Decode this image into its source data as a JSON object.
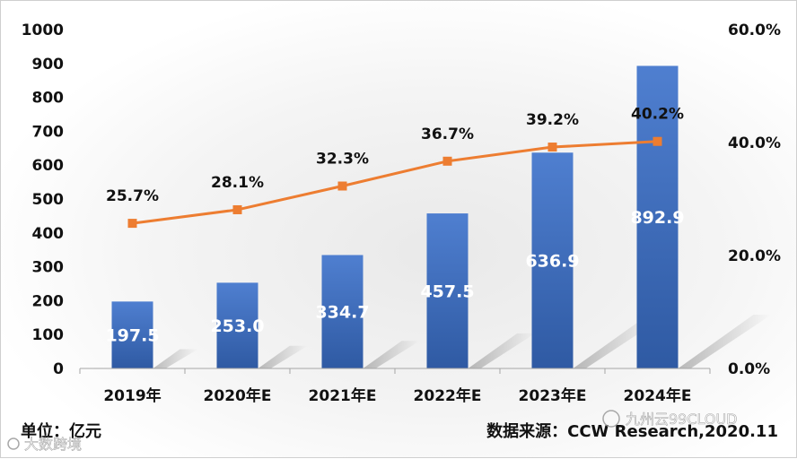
{
  "chart_data": {
    "type": "bar",
    "categories": [
      "2019年",
      "2020年E",
      "2021年E",
      "2022年E",
      "2023年E",
      "2024年E"
    ],
    "series": [
      {
        "type": "bar",
        "axis": "left",
        "values": [
          197.5,
          253.0,
          334.7,
          457.5,
          636.9,
          892.9
        ],
        "labels": [
          "197.5",
          "253.0",
          "334.7",
          "457.5",
          "636.9",
          "892.9"
        ]
      },
      {
        "type": "line",
        "axis": "right",
        "values": [
          25.7,
          28.1,
          32.3,
          36.7,
          39.2,
          40.2
        ],
        "labels": [
          "25.7%",
          "28.1%",
          "32.3%",
          "36.7%",
          "39.2%",
          "40.2%"
        ]
      }
    ],
    "y_left": {
      "min": 0,
      "max": 1000,
      "ticks": [
        "0",
        "100",
        "200",
        "300",
        "400",
        "500",
        "600",
        "700",
        "800",
        "900",
        "1000"
      ]
    },
    "y_right": {
      "min": 0,
      "max": 60,
      "ticks": [
        "0.0%",
        "20.0%",
        "40.0%",
        "60.0%"
      ]
    },
    "grid": false,
    "legend": "none"
  },
  "footer": {
    "unit": "单位：亿元",
    "source": "数据来源：CCW Research,2020.11"
  },
  "watermarks": {
    "left": "大数跨境",
    "right": "九州云99CLOUD"
  },
  "colors": {
    "bar": "#4472c4",
    "line": "#ed7d31"
  }
}
